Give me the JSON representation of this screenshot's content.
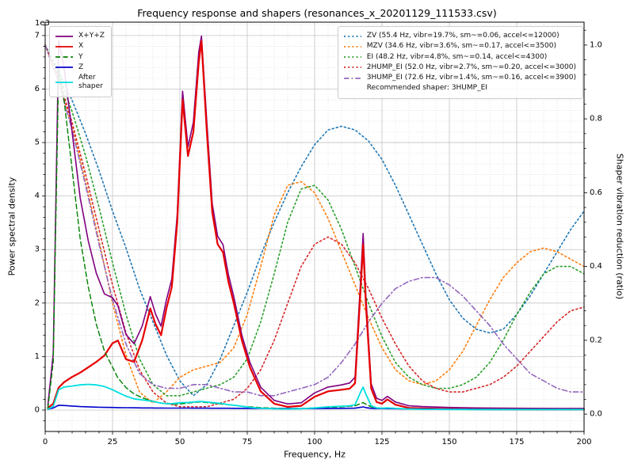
{
  "chart_data": {
    "type": "line",
    "title": "Frequency response and shapers (resonances_x_20201129_111533.csv)",
    "xlabel": "Frequency, Hz",
    "ylabel_left": "Power spectral density",
    "ylabel_right": "Shaper vibration reduction (ratio)",
    "left_axis_multiplier": "1e3",
    "xlim": [
      0,
      200
    ],
    "ylim_left": [
      0,
      7000
    ],
    "ylim_right": [
      0,
      1.0
    ],
    "x_ticks": [
      0,
      25,
      50,
      75,
      100,
      125,
      150,
      175,
      200
    ],
    "y_ticks_left": [
      0,
      1,
      2,
      3,
      4,
      5,
      6,
      7
    ],
    "y_ticks_right": [
      0.0,
      0.2,
      0.4,
      0.6,
      0.8,
      1.0
    ],
    "grid": "major+minor",
    "legend_left_loc": "upper left",
    "legend_right_loc": "upper right",
    "psd": {
      "x": [
        1,
        3,
        5,
        7,
        10,
        13,
        16,
        19,
        22,
        25,
        27,
        30,
        33,
        36,
        39,
        41,
        43,
        45,
        47,
        49,
        51,
        53,
        55,
        57,
        58,
        60,
        62,
        64,
        66,
        68,
        70,
        73,
        76,
        80,
        85,
        90,
        95,
        100,
        105,
        110,
        113,
        115,
        117,
        118,
        119,
        121,
        123,
        125,
        127,
        130,
        135,
        140,
        150,
        160,
        170,
        180,
        190,
        200
      ],
      "series": [
        {
          "name": "X+Y+Z",
          "color": "#800080",
          "style": "solid",
          "width": 1.6,
          "values": [
            85,
            1060,
            6910,
            6405,
            5195,
            3965,
            3160,
            2555,
            2170,
            2100,
            1950,
            1410,
            1240,
            1570,
            2120,
            1790,
            1570,
            2060,
            2450,
            3650,
            5960,
            4920,
            5380,
            6690,
            6990,
            5380,
            3860,
            3250,
            3090,
            2530,
            2120,
            1400,
            890,
            425,
            180,
            115,
            135,
            320,
            430,
            470,
            505,
            615,
            2370,
            3300,
            2155,
            490,
            220,
            180,
            255,
            150,
            80,
            65,
            48,
            40,
            35,
            32,
            30,
            30
          ]
        },
        {
          "name": "X",
          "color": "#e60000",
          "style": "solid",
          "width": 2.2,
          "values": [
            40,
            120,
            420,
            520,
            620,
            700,
            800,
            900,
            1020,
            1250,
            1300,
            950,
            900,
            1300,
            1900,
            1600,
            1400,
            1900,
            2300,
            3500,
            5800,
            4750,
            5200,
            6500,
            6900,
            5200,
            3700,
            3100,
            2950,
            2400,
            2000,
            1300,
            800,
            350,
            120,
            60,
            80,
            250,
            350,
            380,
            400,
            500,
            2200,
            3100,
            2000,
            400,
            150,
            120,
            200,
            100,
            40,
            30,
            20,
            15,
            12,
            10,
            10,
            10
          ]
        },
        {
          "name": "Y",
          "color": "#008000",
          "style": "dashed",
          "width": 1.4,
          "values": [
            30,
            900,
            6400,
            5800,
            4500,
            3200,
            2300,
            1600,
            1100,
            800,
            600,
            420,
            300,
            230,
            180,
            150,
            130,
            120,
            110,
            110,
            120,
            130,
            140,
            150,
            150,
            140,
            130,
            120,
            110,
            100,
            90,
            70,
            60,
            45,
            35,
            30,
            30,
            40,
            50,
            60,
            70,
            80,
            120,
            140,
            110,
            60,
            40,
            35,
            30,
            25,
            20,
            15,
            10,
            8,
            8,
            8,
            8,
            8
          ]
        },
        {
          "name": "Z",
          "color": "#0000cc",
          "style": "solid",
          "width": 1.6,
          "values": [
            15,
            40,
            90,
            85,
            75,
            65,
            60,
            55,
            50,
            48,
            46,
            44,
            42,
            40,
            40,
            38,
            38,
            37,
            37,
            36,
            36,
            36,
            35,
            35,
            35,
            35,
            34,
            34,
            33,
            33,
            32,
            32,
            31,
            30,
            28,
            27,
            26,
            28,
            30,
            32,
            33,
            35,
            50,
            60,
            45,
            32,
            28,
            27,
            26,
            25,
            22,
            20,
            18,
            16,
            15,
            14,
            13,
            12
          ]
        },
        {
          "name": "After\nshaper",
          "color": "#00dede",
          "style": "solid",
          "width": 1.8,
          "values": [
            15,
            70,
            380,
            430,
            450,
            470,
            480,
            470,
            440,
            380,
            330,
            260,
            210,
            190,
            170,
            150,
            130,
            120,
            120,
            130,
            140,
            140,
            150,
            160,
            160,
            150,
            140,
            130,
            120,
            100,
            90,
            70,
            50,
            35,
            25,
            20,
            25,
            40,
            60,
            70,
            80,
            100,
            330,
            430,
            300,
            80,
            40,
            35,
            40,
            30,
            20,
            15,
            12,
            10,
            10,
            10,
            10,
            10
          ]
        }
      ]
    },
    "shapers": {
      "x": [
        0,
        5,
        10,
        15,
        20,
        25,
        30,
        35,
        40,
        45,
        50,
        55,
        60,
        65,
        70,
        75,
        80,
        85,
        90,
        95,
        100,
        105,
        110,
        115,
        120,
        125,
        130,
        135,
        140,
        145,
        150,
        155,
        160,
        165,
        170,
        175,
        180,
        185,
        190,
        195,
        200
      ],
      "series": [
        {
          "name": "ZV",
          "label": "ZV (55.4 Hz, vibr=19.7%, sm~=0.06, accel<=12000)",
          "color": "#1f77b4",
          "style": "dotted",
          "values": [
            1.0,
            0.93,
            0.85,
            0.76,
            0.66,
            0.55,
            0.45,
            0.34,
            0.25,
            0.16,
            0.09,
            0.05,
            0.08,
            0.15,
            0.24,
            0.33,
            0.43,
            0.52,
            0.6,
            0.67,
            0.73,
            0.77,
            0.78,
            0.77,
            0.74,
            0.69,
            0.62,
            0.54,
            0.46,
            0.38,
            0.31,
            0.26,
            0.23,
            0.22,
            0.23,
            0.27,
            0.32,
            0.38,
            0.44,
            0.5,
            0.55
          ]
        },
        {
          "name": "MZV",
          "label": "MZV (34.6 Hz, vibr=3.6%, sm~=0.17, accel<=3500)",
          "color": "#ff7f0e",
          "style": "dotted",
          "values": [
            1.0,
            0.9,
            0.78,
            0.63,
            0.47,
            0.3,
            0.16,
            0.06,
            0.03,
            0.06,
            0.1,
            0.12,
            0.13,
            0.14,
            0.18,
            0.27,
            0.4,
            0.54,
            0.62,
            0.63,
            0.6,
            0.53,
            0.44,
            0.35,
            0.26,
            0.18,
            0.12,
            0.09,
            0.08,
            0.09,
            0.12,
            0.17,
            0.24,
            0.31,
            0.37,
            0.41,
            0.44,
            0.45,
            0.44,
            0.42,
            0.4
          ]
        },
        {
          "name": "EI",
          "label": "EI (48.2 Hz, vibr=4.8%, sm~=0.14, accel<=4300)",
          "color": "#2ca02c",
          "style": "dotted",
          "values": [
            1.0,
            0.92,
            0.82,
            0.7,
            0.56,
            0.41,
            0.27,
            0.15,
            0.08,
            0.05,
            0.05,
            0.06,
            0.07,
            0.08,
            0.1,
            0.15,
            0.25,
            0.38,
            0.52,
            0.61,
            0.62,
            0.58,
            0.5,
            0.4,
            0.3,
            0.21,
            0.14,
            0.1,
            0.08,
            0.07,
            0.07,
            0.08,
            0.1,
            0.14,
            0.2,
            0.27,
            0.33,
            0.38,
            0.4,
            0.4,
            0.38
          ]
        },
        {
          "name": "2HUMP_EI",
          "label": "2HUMP_EI (52.0 Hz, vibr=2.7%, sm~=0.20, accel<=3000)",
          "color": "#d62728",
          "style": "dotted",
          "values": [
            1.0,
            0.91,
            0.79,
            0.65,
            0.5,
            0.35,
            0.22,
            0.12,
            0.06,
            0.03,
            0.02,
            0.02,
            0.02,
            0.03,
            0.04,
            0.07,
            0.12,
            0.2,
            0.3,
            0.4,
            0.46,
            0.48,
            0.46,
            0.41,
            0.34,
            0.26,
            0.19,
            0.13,
            0.09,
            0.07,
            0.06,
            0.06,
            0.07,
            0.08,
            0.1,
            0.13,
            0.17,
            0.21,
            0.25,
            0.28,
            0.29
          ]
        },
        {
          "name": "3HUMP_EI",
          "label": "3HUMP_EI (72.6 Hz, vibr=1.4%, sm~=0.16, accel<=3900)",
          "color": "#9467bd",
          "style": "dashdot",
          "values": [
            1.0,
            0.9,
            0.77,
            0.62,
            0.46,
            0.31,
            0.19,
            0.11,
            0.08,
            0.07,
            0.07,
            0.08,
            0.08,
            0.07,
            0.06,
            0.06,
            0.05,
            0.05,
            0.06,
            0.07,
            0.08,
            0.1,
            0.14,
            0.19,
            0.25,
            0.3,
            0.34,
            0.36,
            0.37,
            0.37,
            0.35,
            0.32,
            0.28,
            0.24,
            0.19,
            0.15,
            0.11,
            0.09,
            0.07,
            0.06,
            0.06
          ]
        }
      ],
      "recommended": "Recommended shaper: 3HUMP_EI"
    }
  }
}
